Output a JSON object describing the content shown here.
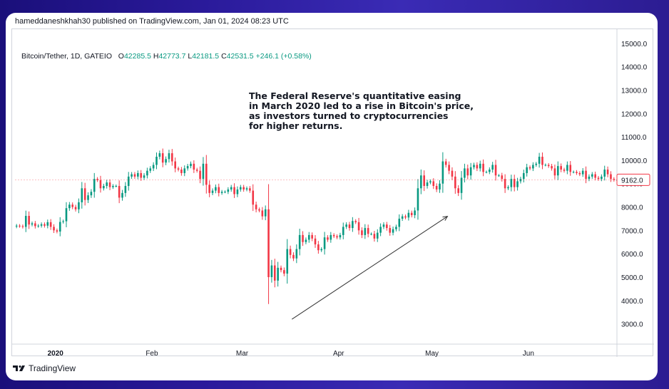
{
  "header": {
    "published": "hameddaneshkhah30 published on TradingView.com, Jan 01, 2024 08:23 UTC"
  },
  "legend": {
    "symbol": "Bitcoin/Tether, 1D, GATEIO",
    "o_label": "O",
    "o_value": "42285.5",
    "h_label": "H",
    "h_value": "42773.7",
    "l_label": "L",
    "l_value": "42181.5",
    "c_label": "C",
    "c_value": "42531.5",
    "change": "+246.1 (+0.58%)"
  },
  "annotation": {
    "lines": [
      "The Federal Reserve's quantitative easing",
      "in March 2020 led to a rise in Bitcoin's price,",
      "as investors turned to cryptocurrencies",
      "for higher returns."
    ]
  },
  "footer": {
    "logo_text": "TradingView"
  },
  "colors": {
    "up": "#089981",
    "down": "#f23645",
    "axis_text": "#131722",
    "price_label": "#f23645"
  },
  "chart_data": {
    "type": "candlestick",
    "y_axis": {
      "ticks": [
        "15000.0",
        "14000.0",
        "13000.0",
        "12000.0",
        "11000.0",
        "10000.0",
        "9000.0",
        "8000.0",
        "7000.0",
        "6000.0",
        "5000.0",
        "4000.0",
        "3000.0"
      ],
      "ylim": [
        2500,
        15300
      ]
    },
    "x_axis": {
      "ticks": [
        {
          "label": "2020",
          "bold": true,
          "day": 13
        },
        {
          "label": "Feb",
          "bold": false,
          "day": 44
        },
        {
          "label": "Mar",
          "bold": false,
          "day": 73
        },
        {
          "label": "Apr",
          "bold": false,
          "day": 104
        },
        {
          "label": "May",
          "bold": false,
          "day": 134
        },
        {
          "label": "Jun",
          "bold": false,
          "day": 165
        }
      ],
      "day_range": [
        0,
        193
      ]
    },
    "last_price": "9162.0",
    "last_price_value": 9162,
    "trend_arrow": {
      "from": [
        89,
        3200
      ],
      "to": [
        139,
        7600
      ]
    },
    "closes": [
      7200,
      7180,
      7150,
      7620,
      7250,
      7300,
      7180,
      7200,
      7260,
      7200,
      7350,
      7150,
      7000,
      6950,
      7360,
      7390,
      7950,
      8100,
      8000,
      7900,
      8200,
      8800,
      8300,
      8500,
      8650,
      9200,
      9150,
      8800,
      8900,
      9050,
      8850,
      8900,
      8900,
      8400,
      8600,
      8900,
      9300,
      9400,
      9300,
      9450,
      9250,
      9350,
      9550,
      9650,
      9800,
      10150,
      10300,
      9900,
      10050,
      10300,
      9950,
      9650,
      9600,
      9450,
      9650,
      9750,
      9850,
      9600,
      9550,
      9200,
      9850,
      8950,
      8600,
      8700,
      8850,
      8600,
      8650,
      8650,
      8750,
      8850,
      8550,
      8750,
      8850,
      8750,
      8800,
      8700,
      8100,
      7900,
      7850,
      7600,
      7900,
      5000,
      5500,
      4850,
      5400,
      5300,
      5150,
      6200,
      5950,
      5800,
      6200,
      6800,
      6500,
      6600,
      6800,
      6650,
      6400,
      6150,
      6200,
      6700,
      6600,
      6800,
      6750,
      6700,
      6800,
      7150,
      7250,
      7100,
      7400,
      7350,
      7000,
      6800,
      7100,
      6850,
      6850,
      6650,
      6900,
      7150,
      7250,
      7100,
      6900,
      7050,
      7150,
      7500,
      7600,
      7550,
      7750,
      7650,
      7850,
      8800,
      9350,
      8900,
      9050,
      9100,
      8900,
      8750,
      9000,
      9950,
      9800,
      9550,
      9300,
      8800,
      8600,
      9250,
      9650,
      9350,
      9700,
      9800,
      9650,
      9850,
      9500,
      9500,
      9600,
      9800,
      9350,
      9350,
      9200,
      8800,
      8850,
      9200,
      8850,
      9100,
      9200,
      9450,
      9700,
      9650,
      9800,
      9850,
      10150,
      9800,
      9800,
      9750,
      9650,
      9350,
      9750,
      9600,
      9550,
      9800,
      9500,
      9500,
      9450,
      9400,
      9550,
      9200,
      9300,
      9400,
      9250,
      9200,
      9300,
      9600,
      9400,
      9200,
      9160,
      9162
    ]
  }
}
